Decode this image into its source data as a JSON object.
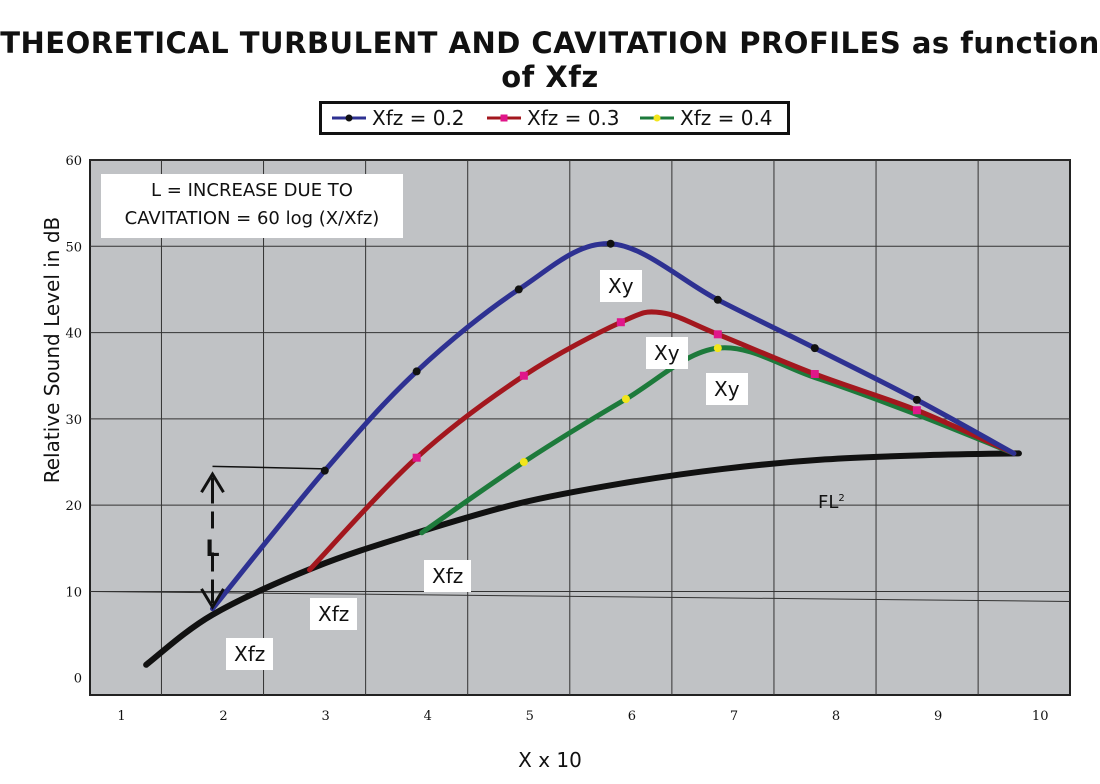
{
  "title": "THEORETICAL TURBULENT AND CAVITATION PROFILES as function of Xfz",
  "legend": [
    {
      "label": "Xfz = 0.2",
      "color": "#2e3192",
      "marker": "#111111"
    },
    {
      "label": "Xfz = 0.3",
      "color": "#a3171e",
      "marker": "#e0168a"
    },
    {
      "label": "Xfz = 0.4",
      "color": "#1d7a3b",
      "marker": "#f2e51c"
    }
  ],
  "note": {
    "line1": "L = INCREASE DUE TO",
    "line2": "CAVITATION = 60 log (X/Xfz)"
  },
  "annotations": {
    "xy1": "Xy",
    "xy2": "Xy",
    "xy3": "Xy",
    "xfz1": "Xfz",
    "xfz2": "Xfz",
    "xfz3": "Xfz",
    "fl": "FL",
    "fl_sup": "2",
    "L": "L"
  },
  "chart_data": {
    "type": "line",
    "title": "THEORETICAL TURBULENT AND CAVITATION PROFILES as function of Xfz",
    "xlabel": "X x 10",
    "ylabel": "Relative Sound Level in dB",
    "xlim": [
      0.8,
      10.4
    ],
    "ylim": [
      -2,
      60
    ],
    "x_ticks": [
      "1",
      "2",
      "3",
      "4",
      "5",
      "6",
      "7",
      "8",
      "9",
      "10"
    ],
    "y_ticks": [
      "0",
      "10",
      "20",
      "30",
      "40",
      "50",
      "60"
    ],
    "grid": true,
    "legend_position": "top",
    "series": [
      {
        "name": "Xfz = 0.2",
        "color": "#2e3192",
        "marker_color": "#111111",
        "x": [
          2.0,
          3.1,
          4.0,
          5.0,
          5.9,
          6.95,
          7.9,
          8.9,
          9.85
        ],
        "y": [
          8,
          24,
          35.5,
          45,
          50.3,
          43.8,
          38.2,
          32.2,
          26
        ]
      },
      {
        "name": "Xfz = 0.3",
        "color": "#a3171e",
        "marker_color": "#e0168a",
        "x": [
          2.95,
          4.0,
          5.05,
          6.0,
          6.4,
          6.95,
          7.9,
          8.9,
          9.85
        ],
        "y": [
          12.5,
          25.5,
          35,
          41.2,
          42.3,
          39.8,
          35.2,
          31,
          26
        ]
      },
      {
        "name": "Xfz = 0.4",
        "color": "#1d7a3b",
        "marker_color": "#f2e51c",
        "x": [
          4.05,
          5.05,
          6.05,
          6.95,
          7.9,
          8.9,
          9.85
        ],
        "y": [
          16.8,
          25,
          32.3,
          38.2,
          34.8,
          30.5,
          26
        ]
      },
      {
        "name": "FL2",
        "color": "#111111",
        "x": [
          1.35,
          2.0,
          3.0,
          4.0,
          5.0,
          6.0,
          7.0,
          8.0,
          9.0,
          9.9
        ],
        "y": [
          1.5,
          7.3,
          12.8,
          16.8,
          20.2,
          22.5,
          24.2,
          25.3,
          25.8,
          26
        ]
      }
    ],
    "marker_points": [
      {
        "series": 0,
        "indices": [
          1,
          2,
          3,
          4,
          5,
          6,
          7
        ]
      },
      {
        "series": 1,
        "indices": [
          1,
          2,
          3,
          5,
          6,
          7
        ]
      },
      {
        "series": 2,
        "indices": [
          1,
          2,
          3
        ]
      }
    ]
  }
}
